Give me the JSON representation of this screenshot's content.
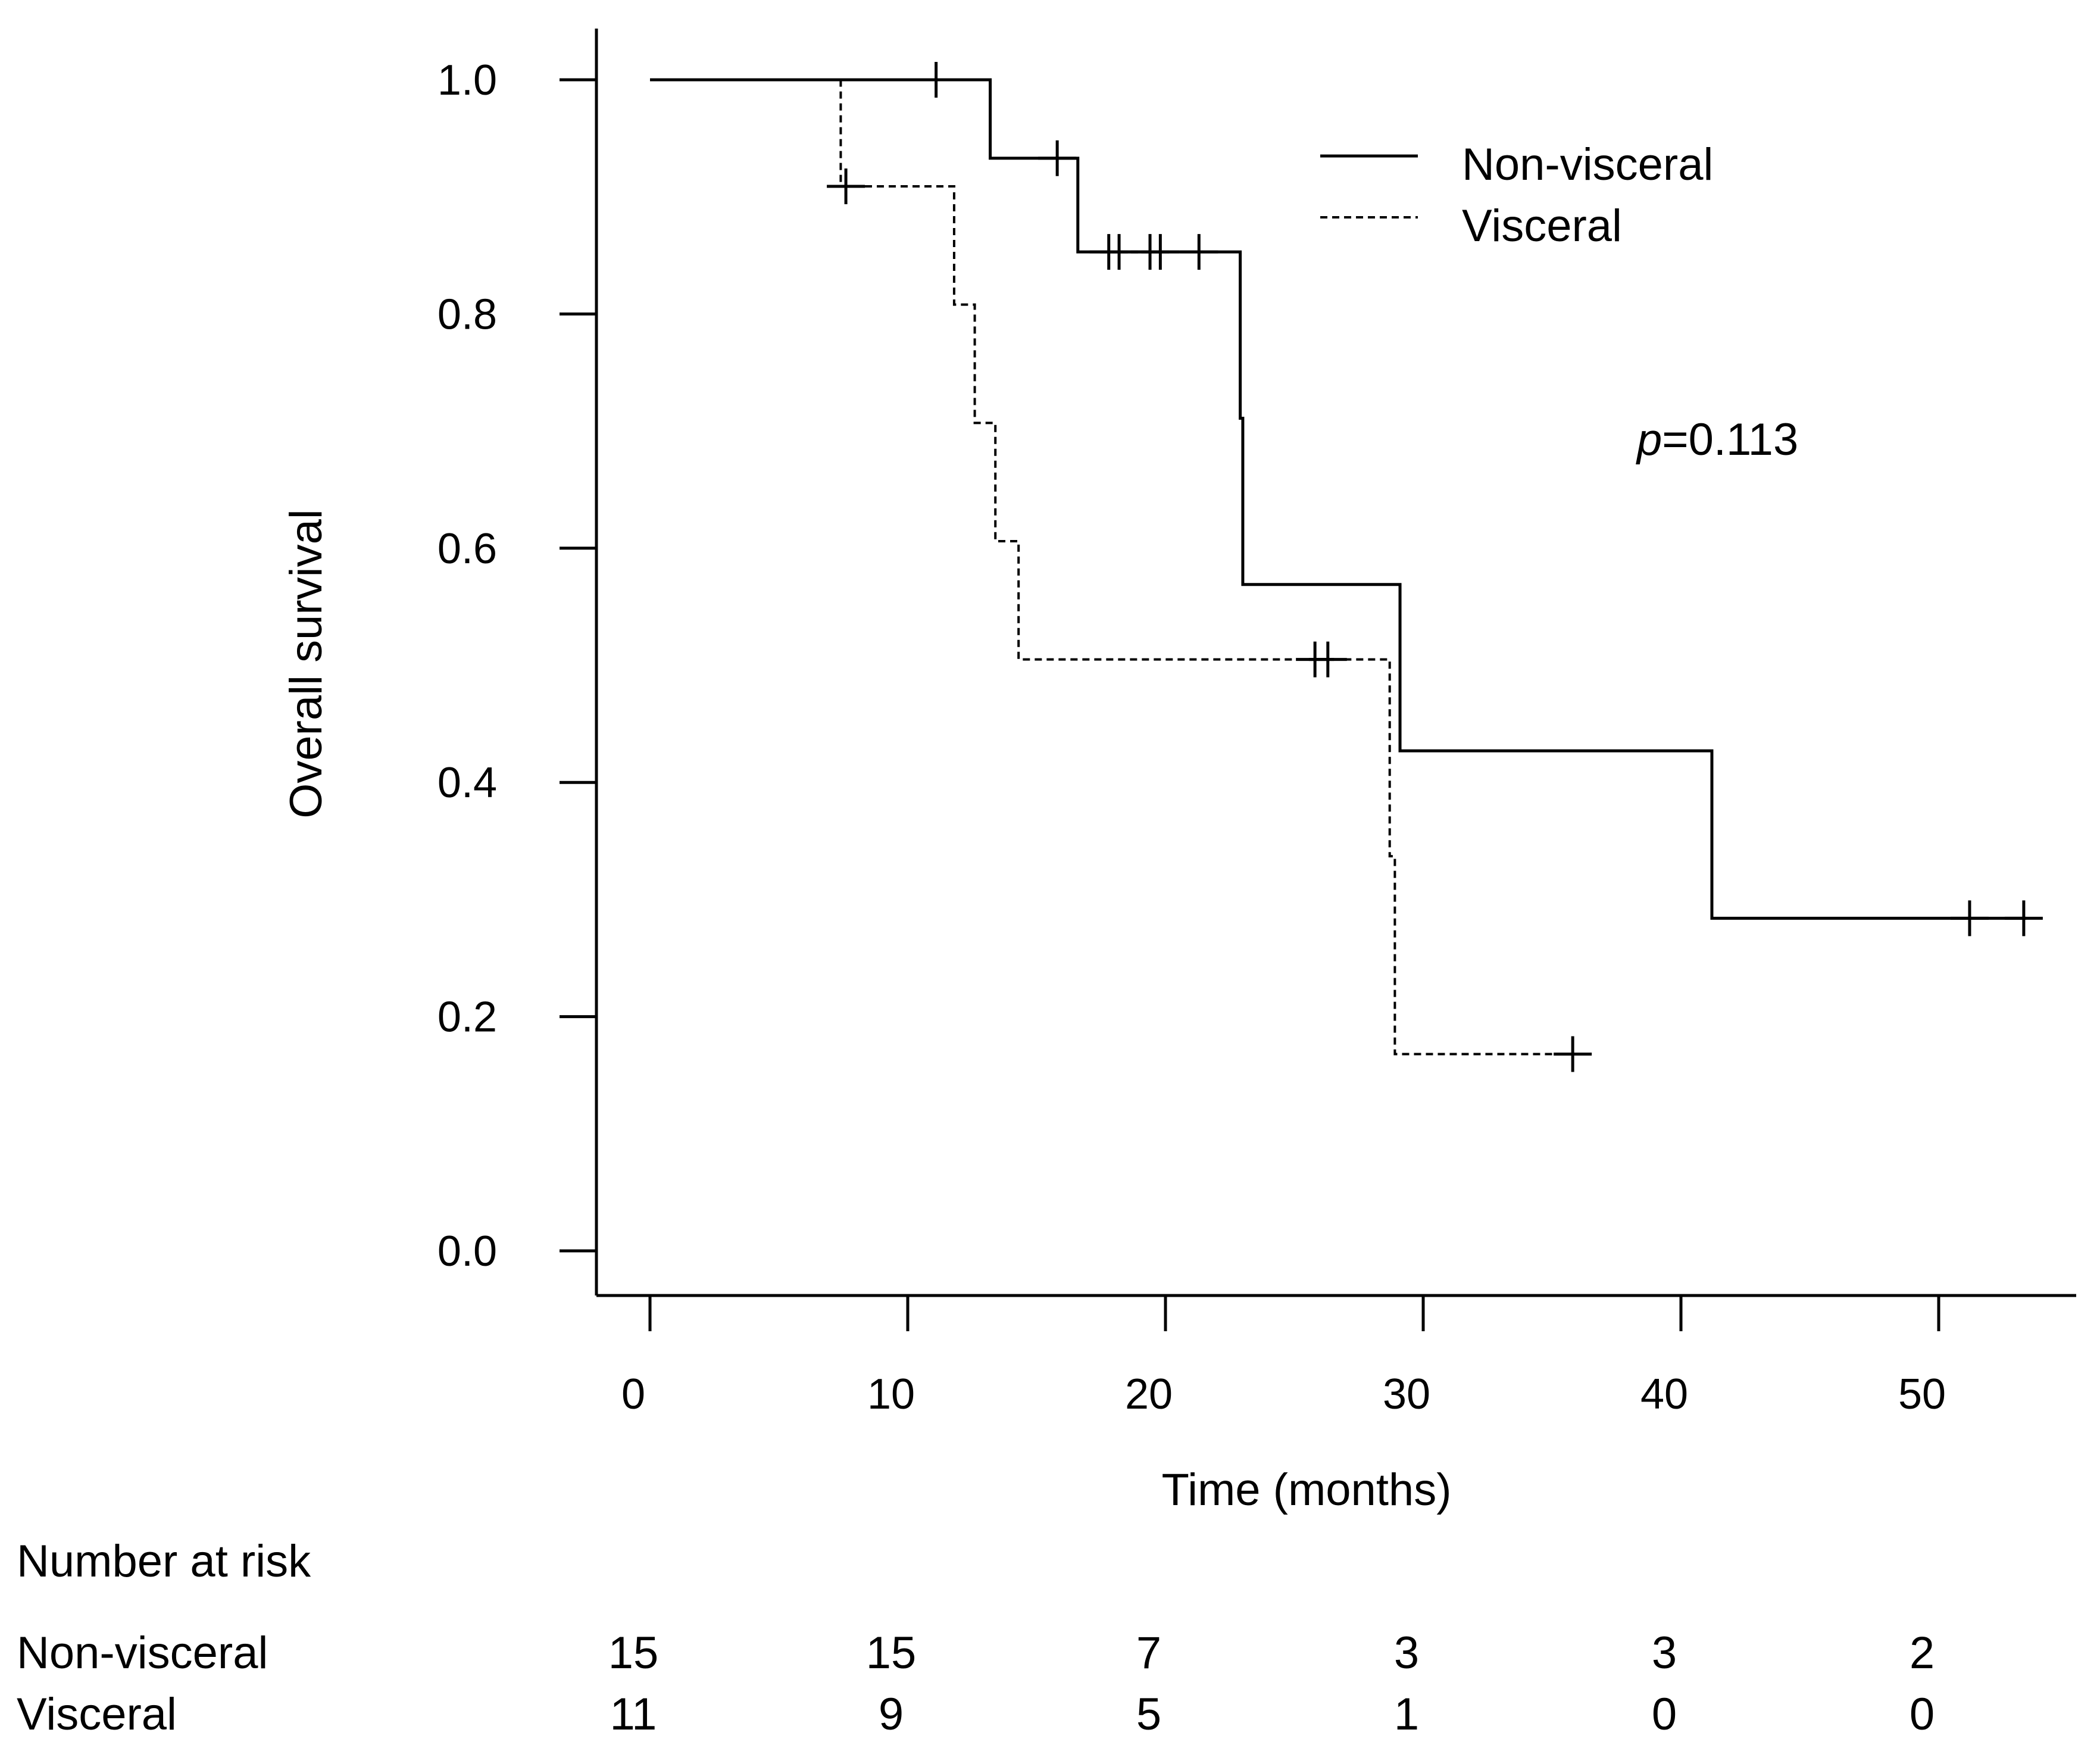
{
  "chart_data": {
    "type": "kaplan-meier",
    "xlabel": "Time (months)",
    "ylabel": "Overall survival",
    "xlim": [
      -2,
      55
    ],
    "ylim": [
      -0.04,
      1.04
    ],
    "xticks": [
      0,
      10,
      20,
      30,
      40,
      50
    ],
    "xtick_labels": [
      "0",
      "10",
      "20",
      "30",
      "40",
      "50"
    ],
    "yticks": [
      0.0,
      0.2,
      0.4,
      0.6,
      0.8,
      1.0
    ],
    "ytick_labels": [
      "0.0",
      "0.2",
      "0.4",
      "0.6",
      "0.8",
      "1.0"
    ],
    "pvalue": {
      "prefix": "p",
      "value": "=0.113"
    },
    "legend": {
      "position": "top-right"
    },
    "series": [
      {
        "name": "Non-visceral",
        "style": "solid",
        "color": "#000000",
        "steps": [
          {
            "time": 0.0,
            "survival": 1.0
          },
          {
            "time": 13.2,
            "survival": 0.933
          },
          {
            "time": 16.6,
            "survival": 0.853
          },
          {
            "time": 22.9,
            "survival": 0.711
          },
          {
            "time": 23.0,
            "survival": 0.569
          },
          {
            "time": 29.1,
            "survival": 0.427
          },
          {
            "time": 41.2,
            "survival": 0.284
          }
        ],
        "end_time": 53.4,
        "censored": [
          11.1,
          15.8,
          17.8,
          18.2,
          19.4,
          19.8,
          21.3,
          51.2,
          53.3
        ]
      },
      {
        "name": "Visceral",
        "style": "dashed",
        "color": "#000000",
        "steps": [
          {
            "time": 0.0,
            "survival": 1.0
          },
          {
            "time": 7.4,
            "survival": 0.909
          },
          {
            "time": 11.8,
            "survival": 0.808
          },
          {
            "time": 12.6,
            "survival": 0.707
          },
          {
            "time": 13.4,
            "survival": 0.606
          },
          {
            "time": 14.3,
            "survival": 0.505
          },
          {
            "time": 28.7,
            "survival": 0.337
          },
          {
            "time": 28.9,
            "survival": 0.168
          }
        ],
        "start_time": 7.4,
        "end_time": 35.8,
        "censored": [
          7.6,
          25.8,
          26.3,
          35.8
        ]
      }
    ],
    "risk_table": {
      "title": "Number at risk",
      "times": [
        0,
        10,
        20,
        30,
        40,
        50
      ],
      "rows": [
        {
          "label": "Non-visceral",
          "counts": [
            "15",
            "15",
            "7",
            "3",
            "3",
            "2"
          ]
        },
        {
          "label": "Visceral",
          "counts": [
            "11",
            "9",
            "5",
            "1",
            "0",
            "0"
          ]
        }
      ]
    }
  }
}
